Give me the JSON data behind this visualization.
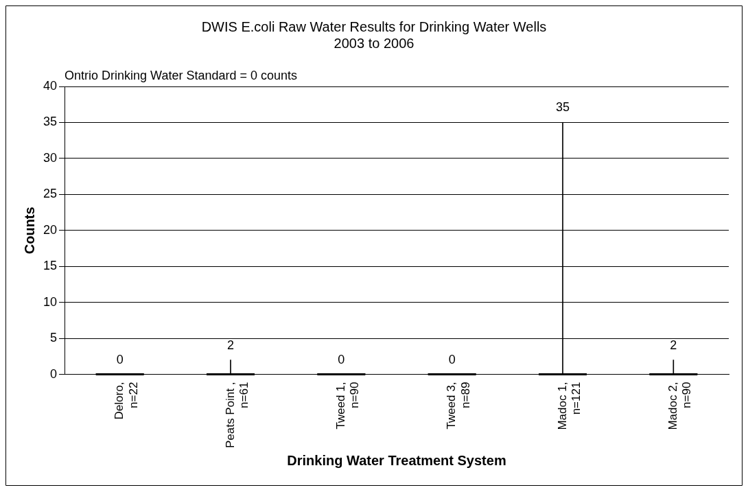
{
  "chart_data": {
    "type": "box",
    "title": "DWIS E.coli Raw Water Results for Drinking Water Wells\n2003 to 2006",
    "xlabel": "Drinking Water Treatment System",
    "ylabel": "Counts",
    "categories": [
      "Deloro,\nn=22",
      "Peats Point ,\nn=61",
      "Tweed 1,\nn=90",
      "Tweed 3,\nn=89",
      "Madoc 1,\nn=121",
      "Madoc 2,\nn=90"
    ],
    "boxes": [
      {
        "low": 0,
        "q1": 0,
        "median": 0,
        "q3": 0,
        "high": 0
      },
      {
        "low": 0,
        "q1": 0,
        "median": 0,
        "q3": 0,
        "high": 2
      },
      {
        "low": 0,
        "q1": 0,
        "median": 0,
        "q3": 0,
        "high": 0
      },
      {
        "low": 0,
        "q1": 0,
        "median": 0,
        "q3": 0,
        "high": 0
      },
      {
        "low": 0,
        "q1": 0,
        "median": 0,
        "q3": 0,
        "high": 35
      },
      {
        "low": 0,
        "q1": 0,
        "median": 0,
        "q3": 0,
        "high": 2
      }
    ],
    "annotations": [
      "Ontrio Drinking Water Standard = 0 counts",
      "0",
      "2",
      "0",
      "0",
      "35",
      "2"
    ],
    "ylim": [
      0,
      40
    ],
    "yticks": [
      0,
      5,
      10,
      15,
      20,
      25,
      30,
      35,
      40
    ],
    "grid": "y",
    "legend": false
  }
}
